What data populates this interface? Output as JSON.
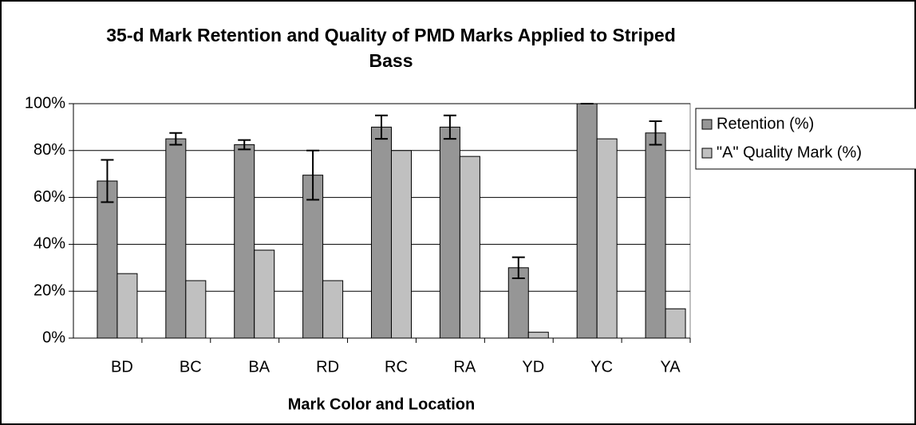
{
  "chart_data": {
    "type": "bar",
    "title": "35-d Mark Retention and Quality of PMD Marks Applied to Striped Bass",
    "x_label": "Mark Color and Location",
    "categories": [
      "BD",
      "BC",
      "BA",
      "RD",
      "RC",
      "RA",
      "YD",
      "YC",
      "YA"
    ],
    "series": [
      {
        "name": "Retention (%)",
        "color": "#969696",
        "values": [
          67,
          85,
          82.5,
          69.5,
          90,
          90,
          30,
          100,
          87.5
        ],
        "errors": [
          9,
          2.5,
          2,
          10.5,
          5,
          5,
          4.5,
          0,
          5
        ]
      },
      {
        "name": "\"A\" Quality Mark (%)",
        "color": "#c0c0c0",
        "values": [
          27.5,
          24.5,
          37.5,
          24.5,
          80,
          77.5,
          2.5,
          85,
          12.5
        ]
      }
    ],
    "ylim": [
      0,
      100
    ],
    "yticks": [
      {
        "value": 0,
        "label": "0%"
      },
      {
        "value": 20,
        "label": "20%"
      },
      {
        "value": 40,
        "label": "40%"
      },
      {
        "value": 60,
        "label": "60%"
      },
      {
        "value": 80,
        "label": "80%"
      },
      {
        "value": 100,
        "label": "100%"
      }
    ],
    "grid": true,
    "legend": "right"
  }
}
